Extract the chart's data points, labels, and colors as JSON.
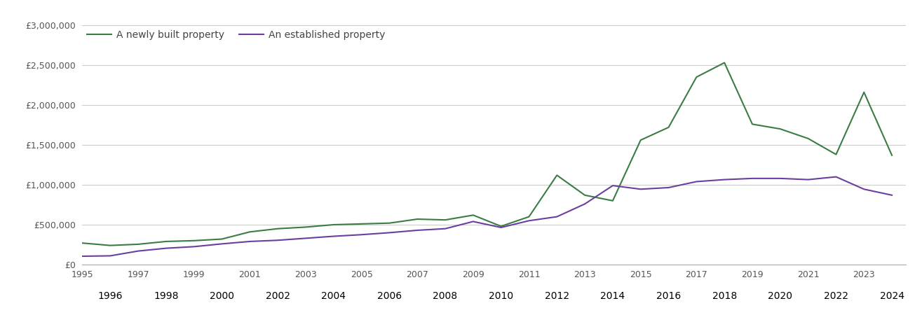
{
  "legend_new": "A newly built property",
  "legend_established": "An established property",
  "color_new": "#3a7d44",
  "color_established": "#6b3fa0",
  "background_color": "#ffffff",
  "grid_color": "#cccccc",
  "ylim": [
    0,
    3000000
  ],
  "yticks": [
    0,
    500000,
    1000000,
    1500000,
    2000000,
    2500000,
    3000000
  ],
  "years": [
    1995,
    1996,
    1997,
    1998,
    1999,
    2000,
    2001,
    2002,
    2003,
    2004,
    2005,
    2006,
    2007,
    2008,
    2009,
    2010,
    2011,
    2012,
    2013,
    2014,
    2015,
    2016,
    2017,
    2018,
    2019,
    2020,
    2021,
    2022,
    2023,
    2024
  ],
  "new_prices": [
    270000,
    240000,
    255000,
    290000,
    300000,
    320000,
    410000,
    450000,
    470000,
    500000,
    510000,
    520000,
    570000,
    560000,
    620000,
    480000,
    600000,
    1120000,
    870000,
    800000,
    1560000,
    1720000,
    2350000,
    2530000,
    1760000,
    1700000,
    1580000,
    1380000,
    2160000,
    1370000
  ],
  "established_prices": [
    105000,
    110000,
    170000,
    205000,
    225000,
    260000,
    290000,
    305000,
    330000,
    355000,
    375000,
    400000,
    430000,
    450000,
    540000,
    465000,
    550000,
    600000,
    760000,
    990000,
    945000,
    965000,
    1040000,
    1065000,
    1080000,
    1080000,
    1065000,
    1100000,
    945000,
    870000
  ]
}
